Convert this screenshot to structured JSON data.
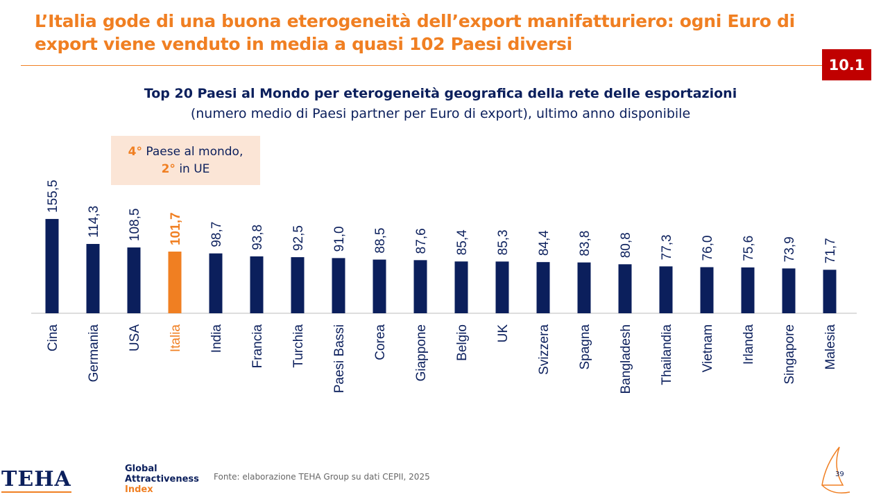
{
  "header": {
    "title": "L’Italia gode di una buona eterogeneità dell’export manifatturiero: ogni Euro di export viene venduto in media a quasi 102 Paesi diversi",
    "badge": "10.1"
  },
  "callout": {
    "line1_bold": "4°",
    "line1": " Paese al mondo,",
    "line2_bold": "2°",
    "line2": " in UE"
  },
  "footer": {
    "source": "Fonte: elaborazione TEHA Group su dati CEPII, 2025",
    "page": "39",
    "logo_teha": "TEHA",
    "logo_gai_1": "Global",
    "logo_gai_2": "Attractiveness",
    "logo_gai_3": "Index"
  },
  "colors": {
    "bar": "#0b1f5c",
    "highlight": "#f07f22"
  },
  "chart_data": {
    "type": "bar",
    "title": "Top 20 Paesi al Mondo per eterogeneità geografica della rete delle esportazioni",
    "subtitle": "(numero medio di Paesi partner per Euro di export), ultimo anno disponibile",
    "categories": [
      "Cina",
      "Germania",
      "USA",
      "Italia",
      "India",
      "Francia",
      "Turchia",
      "Paesi Bassi",
      "Corea",
      "Giappone",
      "Belgio",
      "UK",
      "Svizzera",
      "Spagna",
      "Bangladesh",
      "Thailandia",
      "Vietnam",
      "Irlanda",
      "Singapore",
      "Malesia"
    ],
    "values": [
      155.5,
      114.3,
      108.5,
      101.7,
      98.7,
      93.8,
      92.5,
      91.0,
      88.5,
      87.6,
      85.4,
      85.3,
      84.4,
      83.8,
      80.8,
      77.3,
      76.0,
      75.6,
      73.9,
      71.7
    ],
    "value_labels": [
      "155,5",
      "114,3",
      "108,5",
      "101,7",
      "98,7",
      "93,8",
      "92,5",
      "91,0",
      "88,5",
      "87,6",
      "85,4",
      "85,3",
      "84,4",
      "83,8",
      "80,8",
      "77,3",
      "76,0",
      "75,6",
      "73,9",
      "71,7"
    ],
    "highlight": "Italia",
    "xlabel": "",
    "ylabel": "",
    "ylim": [
      0,
      160
    ],
    "grid": false
  }
}
